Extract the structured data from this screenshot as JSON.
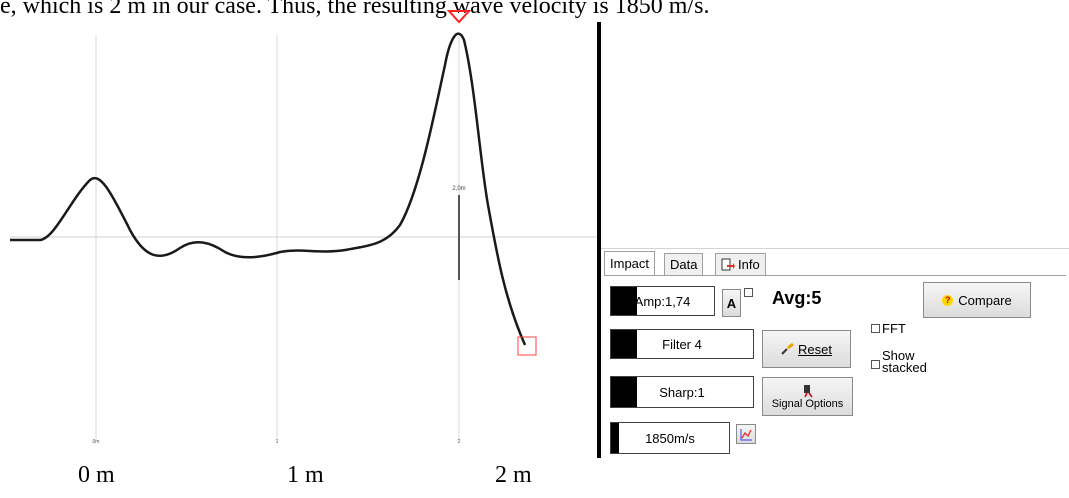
{
  "document": {
    "text_line": "e, which is 2 m in our case. Thus, the resulting wave velocity is 1850 m/s.",
    "bottom_labels": [
      "0 m",
      "1 m",
      "2 m"
    ]
  },
  "plot": {
    "x_tick_labels": [
      "0m",
      "1",
      "2"
    ],
    "marker_label": "2,0m",
    "line_color": "#1a1a1a",
    "marker_color": "#ff2020",
    "grid_color": "#d8d8d8"
  },
  "panel": {
    "tabs": [
      {
        "label": "Impact",
        "active": true
      },
      {
        "label": "Data",
        "active": false
      },
      {
        "label": "Info",
        "active": false,
        "icon": "info-page-icon"
      }
    ],
    "amp": {
      "label": "Amp:1,74",
      "level": 0.25
    },
    "auto_button": "A",
    "avg_label": "Avg:5",
    "compare_button": "Compare",
    "filter": {
      "label": "Filter 4",
      "level": 0.18
    },
    "reset_button": "Reset",
    "fft_label": "FFT",
    "show_stacked_label": "Show\nstacked",
    "sharp": {
      "label": "Sharp:1",
      "level": 0.18
    },
    "signal_options_button": "Signal Options",
    "velocity": {
      "label": "1850m/s",
      "level": 0.07
    },
    "chart_icon": "chart-icon"
  }
}
